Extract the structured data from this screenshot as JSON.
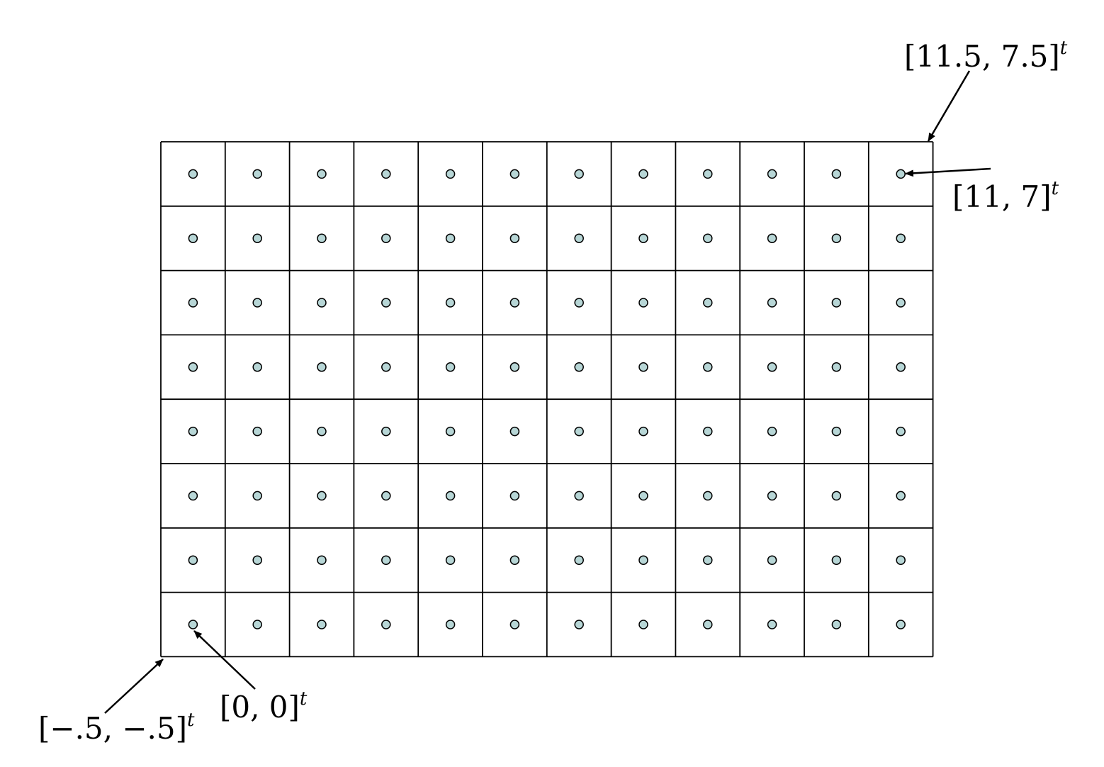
{
  "grid": {
    "columns": 12,
    "rows": 8,
    "line_color": "#000000",
    "point_fill": "#b7d6d6",
    "point_stroke": "#000000"
  },
  "annotations": {
    "top_right_corner": {
      "text": "[11.5, 7.5]",
      "sup": "t"
    },
    "top_right_point": {
      "text": "[11, 7]",
      "sup": "t"
    },
    "origin_point": {
      "text": "[0, 0]",
      "sup": "t"
    },
    "bottom_left_corner": {
      "text": "[−.5, −.5]",
      "sup": "t"
    }
  }
}
